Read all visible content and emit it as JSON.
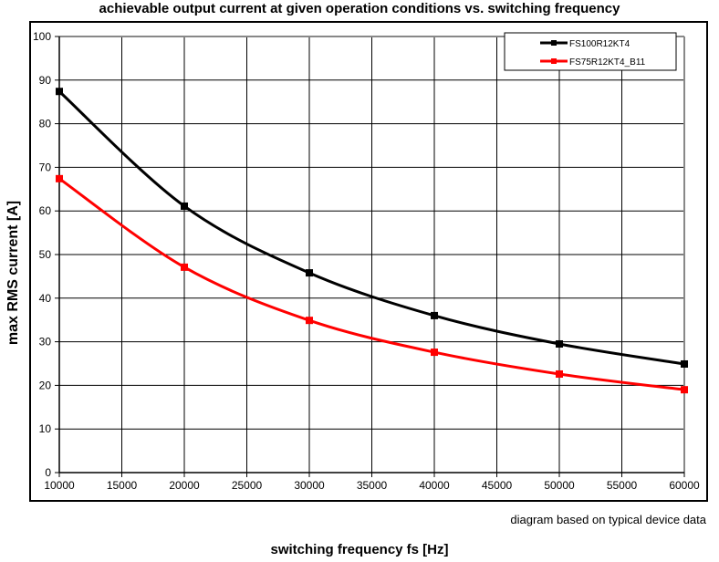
{
  "chart_data": {
    "type": "line",
    "title": "achievable output current at given operation conditions vs. switching frequency",
    "xlabel": "switching frequency fs [Hz]",
    "ylabel": "max RMS current [A]",
    "note": "diagram based on typical device data",
    "xlim": [
      10000,
      60000
    ],
    "ylim": [
      0,
      100
    ],
    "xticks": [
      10000,
      15000,
      20000,
      25000,
      30000,
      35000,
      40000,
      45000,
      50000,
      55000,
      60000
    ],
    "yticks": [
      0,
      10,
      20,
      30,
      40,
      50,
      60,
      70,
      80,
      90,
      100
    ],
    "grid": true,
    "legend": "top-right",
    "x": [
      10000,
      20000,
      30000,
      40000,
      50000,
      60000
    ],
    "series": [
      {
        "name": "FS100R12KT4",
        "color": "#000000",
        "values": [
          87.4,
          61.1,
          45.8,
          36.0,
          29.5,
          24.9
        ]
      },
      {
        "name": "FS75R12KT4_B11",
        "color": "#ff0000",
        "values": [
          67.4,
          47.1,
          34.9,
          27.6,
          22.6,
          19.0
        ]
      }
    ]
  }
}
